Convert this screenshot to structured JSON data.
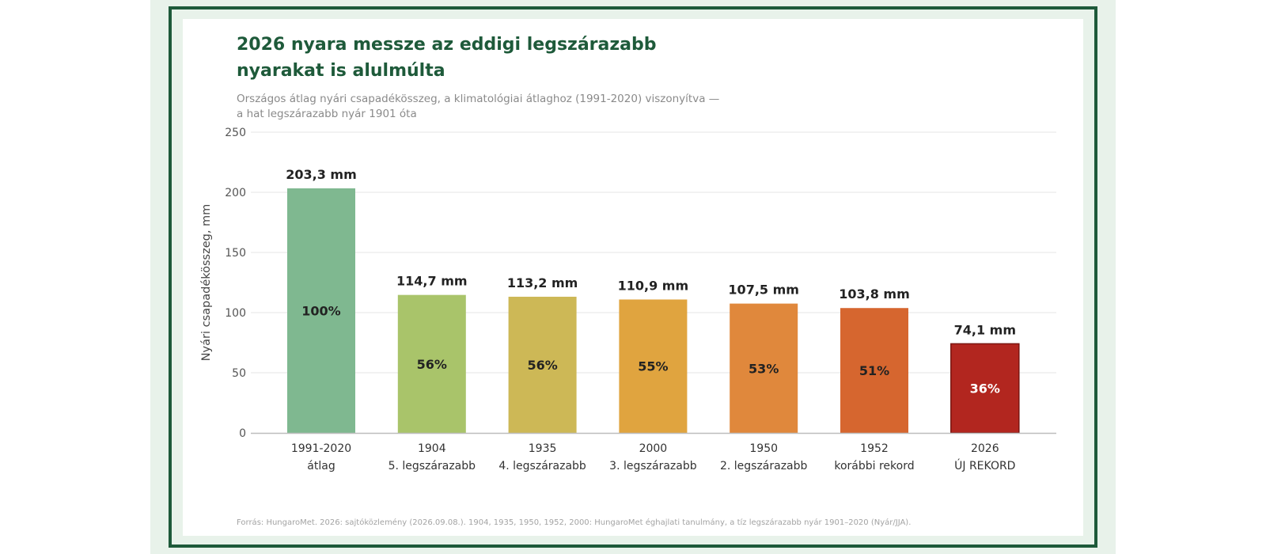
{
  "chart_data": {
    "type": "bar",
    "title": "2026 nyara messze az eddigi legszárazabb nyarakat is alulmúlta",
    "subtitle_line1": "Országos átlag nyári csapadékösszeg, a klimatológiai átlaghoz (1991-2020) viszonyítva —",
    "subtitle_line2": "a hat legszárazabb nyár 1901 óta",
    "ylabel": "Nyári csapadékösszeg, mm",
    "ylim": [
      0,
      250
    ],
    "yticks": [
      "0",
      "50",
      "100",
      "150",
      "200",
      "250"
    ],
    "ytick_values": [
      0,
      50,
      100,
      150,
      200,
      250
    ],
    "grid": true,
    "bars": [
      {
        "cat1": "1991-2020",
        "cat2": "átlag",
        "value": 203.3,
        "value_label": "203,3 mm",
        "pct_label": "100%",
        "color": "#7fb890",
        "pct_color": "#222222"
      },
      {
        "cat1": "1904",
        "cat2": "5. legszárazabb",
        "value": 114.7,
        "value_label": "114,7 mm",
        "pct_label": "56%",
        "color": "#a9c46a",
        "pct_color": "#222222"
      },
      {
        "cat1": "1935",
        "cat2": "4. legszárazabb",
        "value": 113.2,
        "value_label": "113,2 mm",
        "pct_label": "56%",
        "color": "#cdb856",
        "pct_color": "#222222"
      },
      {
        "cat1": "2000",
        "cat2": "3. legszárazabb",
        "value": 110.9,
        "value_label": "110,9 mm",
        "pct_label": "55%",
        "color": "#e0a43f",
        "pct_color": "#222222"
      },
      {
        "cat1": "1950",
        "cat2": "2. legszárazabb",
        "value": 107.5,
        "value_label": "107,5 mm",
        "pct_label": "53%",
        "color": "#e0883c",
        "pct_color": "#222222"
      },
      {
        "cat1": "1952",
        "cat2": "korábbi rekord",
        "value": 103.8,
        "value_label": "103,8 mm",
        "pct_label": "51%",
        "color": "#d6662f",
        "pct_color": "#222222"
      },
      {
        "cat1": "2026",
        "cat2": "ÚJ REKORD",
        "value": 74.1,
        "value_label": "74,1 mm",
        "pct_label": "36%",
        "color": "#b2261f",
        "pct_color": "#ffffff",
        "border_color": "#7a1510"
      }
    ],
    "source": "Forrás: HungaroMet. 2026: sajtóközlemény (2026.09.08.). 1904, 1935, 1950, 1952, 2000: HungaroMet éghajlati tanulmány, a tíz legszárazabb nyár 1901–2020 (Nyár/JJA)."
  }
}
